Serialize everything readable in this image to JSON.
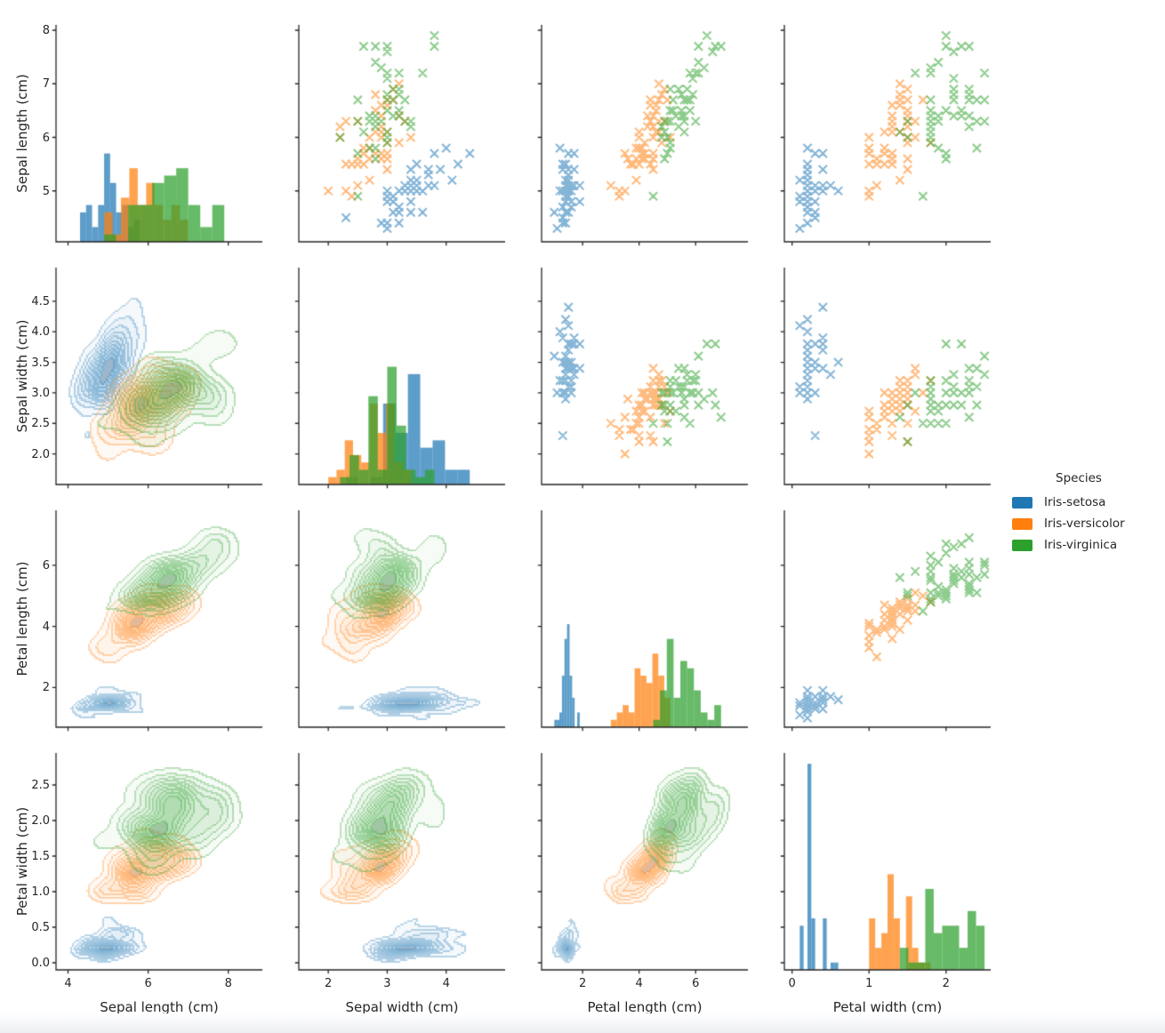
{
  "chart_data": {
    "type": "scatter",
    "subtype": "pairplot",
    "title": "",
    "variables": [
      "Sepal length (cm)",
      "Sepal width (cm)",
      "Petal length (cm)",
      "Petal width (cm)"
    ],
    "panel_types": {
      "diagonal": "histogram",
      "upper_triangle": "scatter",
      "lower_triangle": "kde-contour"
    },
    "marker": "x",
    "grid": "off",
    "legend": {
      "title": "Species",
      "position": "right-middle",
      "entries": [
        {
          "label": "Iris-setosa",
          "color": "#1f77b4"
        },
        {
          "label": "Iris-versicolor",
          "color": "#ff7f0e"
        },
        {
          "label": "Iris-virginica",
          "color": "#2ca02c"
        }
      ]
    },
    "axes": {
      "col_ranges": [
        [
          3.7,
          8.85
        ],
        [
          1.5,
          5.0
        ],
        [
          0.55,
          7.85
        ],
        [
          -0.1,
          2.58
        ]
      ],
      "row_ranges": [
        [
          4.05,
          8.1
        ],
        [
          1.5,
          5.05
        ],
        [
          0.7,
          7.8
        ],
        [
          -0.1,
          2.95
        ]
      ],
      "col_tick_values": [
        [
          4,
          6,
          8
        ],
        [
          2,
          3,
          4
        ],
        [
          2,
          4,
          6
        ],
        [
          0,
          1,
          2
        ]
      ],
      "col_tick_labels": [
        [
          "4",
          "6",
          "8"
        ],
        [
          "2",
          "3",
          "4"
        ],
        [
          "2",
          "4",
          "6"
        ],
        [
          "0",
          "1",
          "2"
        ]
      ],
      "row_tick_values": [
        [
          5,
          6,
          7,
          8
        ],
        [
          2.0,
          2.5,
          3.0,
          3.5,
          4.0,
          4.5
        ],
        [
          2,
          4,
          6
        ],
        [
          0.0,
          0.5,
          1.0,
          1.5,
          2.0,
          2.5
        ]
      ],
      "row_tick_labels": [
        [
          "5",
          "6",
          "7",
          "8"
        ],
        [
          "2.0",
          "2.5",
          "3.0",
          "3.5",
          "4.0",
          "4.5"
        ],
        [
          "2",
          "4",
          "6"
        ],
        [
          "0.0",
          "0.5",
          "1.0",
          "1.5",
          "2.0",
          "2.5"
        ]
      ]
    },
    "series": [
      {
        "name": "Iris-setosa",
        "color": "#1f77b4",
        "columns": [
          "sepal_length",
          "sepal_width",
          "petal_length",
          "petal_width"
        ],
        "data": [
          [
            5.1,
            3.5,
            1.4,
            0.2
          ],
          [
            4.9,
            3.0,
            1.4,
            0.2
          ],
          [
            4.7,
            3.2,
            1.3,
            0.2
          ],
          [
            4.6,
            3.1,
            1.5,
            0.2
          ],
          [
            5.0,
            3.6,
            1.4,
            0.2
          ],
          [
            5.4,
            3.9,
            1.7,
            0.4
          ],
          [
            4.6,
            3.4,
            1.4,
            0.3
          ],
          [
            5.0,
            3.4,
            1.5,
            0.2
          ],
          [
            4.4,
            2.9,
            1.4,
            0.2
          ],
          [
            4.9,
            3.1,
            1.5,
            0.1
          ],
          [
            5.4,
            3.7,
            1.5,
            0.2
          ],
          [
            4.8,
            3.4,
            1.6,
            0.2
          ],
          [
            4.8,
            3.0,
            1.4,
            0.1
          ],
          [
            4.3,
            3.0,
            1.1,
            0.1
          ],
          [
            5.8,
            4.0,
            1.2,
            0.2
          ],
          [
            5.7,
            4.4,
            1.5,
            0.4
          ],
          [
            5.4,
            3.9,
            1.3,
            0.4
          ],
          [
            5.1,
            3.5,
            1.4,
            0.3
          ],
          [
            5.7,
            3.8,
            1.7,
            0.3
          ],
          [
            5.1,
            3.8,
            1.5,
            0.3
          ],
          [
            5.4,
            3.4,
            1.7,
            0.2
          ],
          [
            5.1,
            3.7,
            1.5,
            0.4
          ],
          [
            4.6,
            3.6,
            1.0,
            0.2
          ],
          [
            5.1,
            3.3,
            1.7,
            0.5
          ],
          [
            4.8,
            3.4,
            1.9,
            0.2
          ],
          [
            5.0,
            3.0,
            1.6,
            0.2
          ],
          [
            5.0,
            3.4,
            1.6,
            0.4
          ],
          [
            5.2,
            3.5,
            1.5,
            0.2
          ],
          [
            5.2,
            3.4,
            1.4,
            0.2
          ],
          [
            4.7,
            3.2,
            1.6,
            0.2
          ],
          [
            4.8,
            3.1,
            1.6,
            0.2
          ],
          [
            5.4,
            3.4,
            1.5,
            0.4
          ],
          [
            5.2,
            4.1,
            1.5,
            0.1
          ],
          [
            5.5,
            4.2,
            1.4,
            0.2
          ],
          [
            4.9,
            3.1,
            1.5,
            0.1
          ],
          [
            5.0,
            3.2,
            1.2,
            0.2
          ],
          [
            5.5,
            3.5,
            1.3,
            0.2
          ],
          [
            4.9,
            3.1,
            1.5,
            0.1
          ],
          [
            4.4,
            3.0,
            1.3,
            0.2
          ],
          [
            5.1,
            3.4,
            1.5,
            0.2
          ],
          [
            5.0,
            3.5,
            1.3,
            0.3
          ],
          [
            4.5,
            2.3,
            1.3,
            0.3
          ],
          [
            4.4,
            3.2,
            1.3,
            0.2
          ],
          [
            5.0,
            3.5,
            1.6,
            0.6
          ],
          [
            5.1,
            3.8,
            1.9,
            0.4
          ],
          [
            4.8,
            3.0,
            1.4,
            0.3
          ],
          [
            5.1,
            3.8,
            1.6,
            0.2
          ],
          [
            4.6,
            3.2,
            1.4,
            0.2
          ],
          [
            5.3,
            3.7,
            1.5,
            0.2
          ],
          [
            5.0,
            3.3,
            1.4,
            0.2
          ]
        ]
      },
      {
        "name": "Iris-versicolor",
        "color": "#ff7f0e",
        "columns": [
          "sepal_length",
          "sepal_width",
          "petal_length",
          "petal_width"
        ],
        "data": [
          [
            7.0,
            3.2,
            4.7,
            1.4
          ],
          [
            6.4,
            3.2,
            4.5,
            1.5
          ],
          [
            6.9,
            3.1,
            4.9,
            1.5
          ],
          [
            5.5,
            2.3,
            4.0,
            1.3
          ],
          [
            6.5,
            2.8,
            4.6,
            1.5
          ],
          [
            5.7,
            2.8,
            4.5,
            1.3
          ],
          [
            6.3,
            3.3,
            4.7,
            1.6
          ],
          [
            4.9,
            2.4,
            3.3,
            1.0
          ],
          [
            6.6,
            2.9,
            4.6,
            1.3
          ],
          [
            5.2,
            2.7,
            3.9,
            1.4
          ],
          [
            5.0,
            2.0,
            3.5,
            1.0
          ],
          [
            5.9,
            3.0,
            4.2,
            1.5
          ],
          [
            6.0,
            2.2,
            4.0,
            1.0
          ],
          [
            6.1,
            2.9,
            4.7,
            1.4
          ],
          [
            5.6,
            2.9,
            3.6,
            1.3
          ],
          [
            6.7,
            3.1,
            4.4,
            1.4
          ],
          [
            5.6,
            3.0,
            4.5,
            1.5
          ],
          [
            5.8,
            2.7,
            4.1,
            1.0
          ],
          [
            6.2,
            2.2,
            4.5,
            1.5
          ],
          [
            5.6,
            2.5,
            3.9,
            1.1
          ],
          [
            5.9,
            3.2,
            4.8,
            1.8
          ],
          [
            6.1,
            2.8,
            4.0,
            1.3
          ],
          [
            6.3,
            2.5,
            4.9,
            1.5
          ],
          [
            6.1,
            2.8,
            4.7,
            1.2
          ],
          [
            6.4,
            2.9,
            4.3,
            1.3
          ],
          [
            6.6,
            3.0,
            4.4,
            1.4
          ],
          [
            6.8,
            2.8,
            4.8,
            1.4
          ],
          [
            6.7,
            3.0,
            5.0,
            1.7
          ],
          [
            6.0,
            2.9,
            4.5,
            1.5
          ],
          [
            5.7,
            2.6,
            3.5,
            1.0
          ],
          [
            5.5,
            2.4,
            3.8,
            1.1
          ],
          [
            5.5,
            2.4,
            3.7,
            1.0
          ],
          [
            5.8,
            2.7,
            3.9,
            1.2
          ],
          [
            6.0,
            2.7,
            5.1,
            1.6
          ],
          [
            5.4,
            3.0,
            4.5,
            1.5
          ],
          [
            6.0,
            3.4,
            4.5,
            1.6
          ],
          [
            6.7,
            3.1,
            4.7,
            1.5
          ],
          [
            6.3,
            2.3,
            4.4,
            1.3
          ],
          [
            5.6,
            3.0,
            4.1,
            1.3
          ],
          [
            5.5,
            2.5,
            4.0,
            1.3
          ],
          [
            5.5,
            2.6,
            4.4,
            1.2
          ],
          [
            6.1,
            3.0,
            4.6,
            1.4
          ],
          [
            5.8,
            2.6,
            4.0,
            1.2
          ],
          [
            5.0,
            2.3,
            3.3,
            1.0
          ],
          [
            5.6,
            2.7,
            4.2,
            1.3
          ],
          [
            5.7,
            3.0,
            4.2,
            1.2
          ],
          [
            5.7,
            2.9,
            4.2,
            1.3
          ],
          [
            6.2,
            2.9,
            4.3,
            1.3
          ],
          [
            5.1,
            2.5,
            3.0,
            1.1
          ],
          [
            5.7,
            2.8,
            4.1,
            1.3
          ]
        ]
      },
      {
        "name": "Iris-virginica",
        "color": "#2ca02c",
        "columns": [
          "sepal_length",
          "sepal_width",
          "petal_length",
          "petal_width"
        ],
        "data": [
          [
            6.3,
            3.3,
            6.0,
            2.5
          ],
          [
            5.8,
            2.7,
            5.1,
            1.9
          ],
          [
            7.1,
            3.0,
            5.9,
            2.1
          ],
          [
            6.3,
            2.9,
            5.6,
            1.8
          ],
          [
            6.5,
            3.0,
            5.8,
            2.2
          ],
          [
            7.6,
            3.0,
            6.6,
            2.1
          ],
          [
            4.9,
            2.5,
            4.5,
            1.7
          ],
          [
            7.3,
            2.9,
            6.3,
            1.8
          ],
          [
            6.7,
            2.5,
            5.8,
            1.8
          ],
          [
            7.2,
            3.6,
            6.1,
            2.5
          ],
          [
            6.5,
            3.2,
            5.1,
            2.0
          ],
          [
            6.4,
            2.7,
            5.3,
            1.9
          ],
          [
            6.8,
            3.0,
            5.5,
            2.1
          ],
          [
            5.7,
            2.5,
            5.0,
            2.0
          ],
          [
            5.8,
            2.8,
            5.1,
            2.4
          ],
          [
            6.4,
            3.2,
            5.3,
            2.3
          ],
          [
            6.5,
            3.0,
            5.5,
            1.8
          ],
          [
            7.7,
            3.8,
            6.7,
            2.2
          ],
          [
            7.7,
            2.6,
            6.9,
            2.3
          ],
          [
            6.0,
            2.2,
            5.0,
            1.5
          ],
          [
            6.9,
            3.2,
            5.7,
            2.3
          ],
          [
            5.6,
            2.8,
            4.9,
            2.0
          ],
          [
            7.7,
            2.8,
            6.7,
            2.0
          ],
          [
            6.3,
            2.7,
            4.9,
            1.8
          ],
          [
            6.7,
            3.3,
            5.7,
            2.1
          ],
          [
            7.2,
            3.2,
            6.0,
            1.8
          ],
          [
            6.2,
            2.8,
            4.8,
            1.8
          ],
          [
            6.1,
            3.0,
            4.9,
            1.8
          ],
          [
            6.4,
            2.8,
            5.6,
            2.1
          ],
          [
            7.2,
            3.0,
            5.8,
            1.6
          ],
          [
            7.4,
            2.8,
            6.1,
            1.9
          ],
          [
            7.9,
            3.8,
            6.4,
            2.0
          ],
          [
            6.4,
            2.8,
            5.6,
            2.2
          ],
          [
            6.3,
            2.8,
            5.1,
            1.5
          ],
          [
            6.1,
            2.6,
            5.6,
            1.4
          ],
          [
            7.7,
            3.0,
            6.1,
            2.3
          ],
          [
            6.3,
            3.4,
            5.6,
            2.4
          ],
          [
            6.4,
            3.1,
            5.5,
            1.8
          ],
          [
            6.0,
            3.0,
            4.8,
            1.8
          ],
          [
            6.9,
            3.1,
            5.4,
            2.1
          ],
          [
            6.7,
            3.1,
            5.6,
            2.4
          ],
          [
            6.9,
            3.1,
            5.1,
            2.3
          ],
          [
            5.8,
            2.7,
            5.1,
            1.9
          ],
          [
            6.8,
            3.2,
            5.9,
            2.3
          ],
          [
            6.7,
            3.3,
            5.7,
            2.5
          ],
          [
            6.7,
            3.0,
            5.2,
            2.3
          ],
          [
            6.3,
            2.5,
            5.0,
            1.9
          ],
          [
            6.5,
            3.0,
            5.2,
            2.0
          ],
          [
            6.2,
            3.4,
            5.4,
            2.3
          ],
          [
            5.9,
            3.0,
            5.1,
            1.8
          ]
        ]
      }
    ],
    "style": {
      "spine_color": "#262626",
      "text_color": "#262626",
      "background": "#ffffff",
      "histogram_alpha": 0.72,
      "scatter_alpha": 0.55
    }
  }
}
